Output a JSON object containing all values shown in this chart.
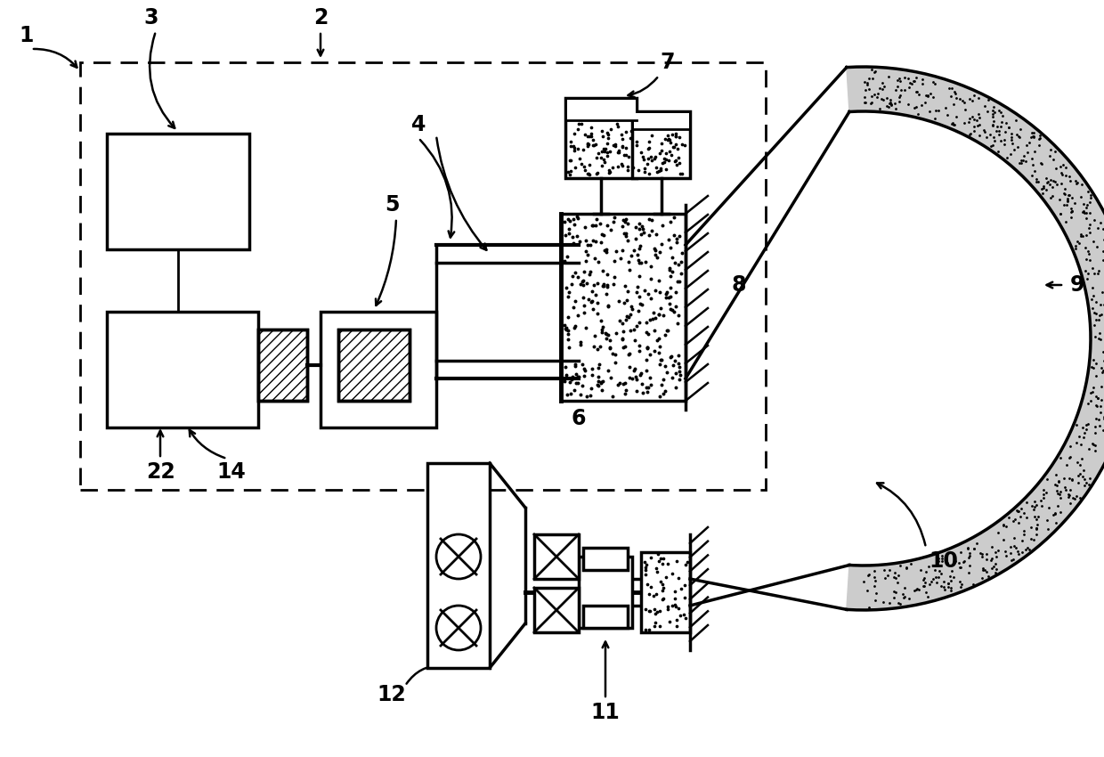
{
  "bg_color": "#ffffff",
  "lc": "#000000",
  "lw": 2.5,
  "fs": 17,
  "fw": "bold"
}
